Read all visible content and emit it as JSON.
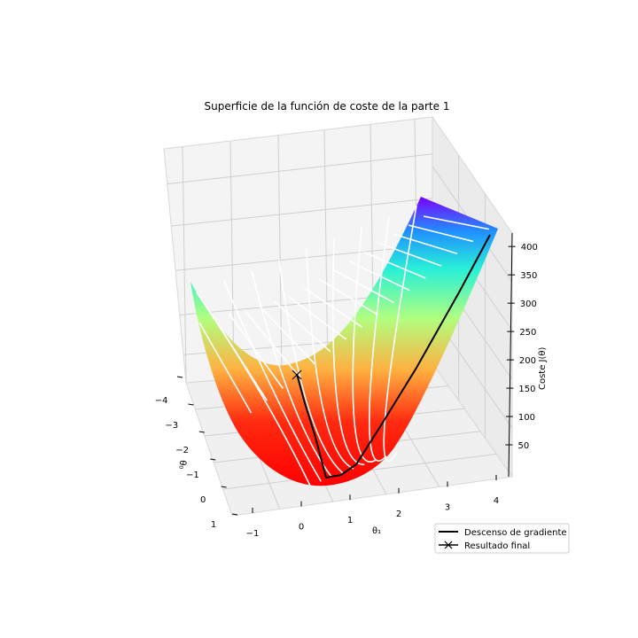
{
  "chart_data": {
    "type": "surface",
    "title": "Superficie de la función de coste de la parte 1",
    "xlabel": "θ₁",
    "ylabel": "θ₀",
    "zlabel": "Coste J(θ)",
    "x_ticks": [
      "−1",
      "0",
      "1",
      "2",
      "3",
      "4"
    ],
    "y_ticks": [
      "−4",
      "−3",
      "−2",
      "−1",
      "0",
      "1"
    ],
    "z_ticks": [
      "50",
      "100",
      "150",
      "200",
      "250",
      "300",
      "350",
      "400"
    ],
    "xlim": [
      -1,
      4
    ],
    "ylim": [
      -4,
      1
    ],
    "zlim": [
      0,
      430
    ],
    "colormap": "rainbow",
    "grid": true,
    "legend_position": "lower-right",
    "series": [
      {
        "name": "Descenso de gradiente",
        "color": "#000000",
        "theta1": [
          4.0,
          2.5,
          1.2,
          0.72,
          0.5,
          0.42
        ],
        "theta0": [
          -0.4,
          -1.2,
          -2.0,
          -2.7,
          -3.5,
          -3.9
        ],
        "cost": [
          430,
          270,
          120,
          45,
          25,
          5
        ]
      }
    ],
    "legend": [
      "Descenso de gradiente",
      "Resultado final"
    ],
    "final_result": {
      "name": "Resultado final",
      "marker": "x"
    }
  }
}
